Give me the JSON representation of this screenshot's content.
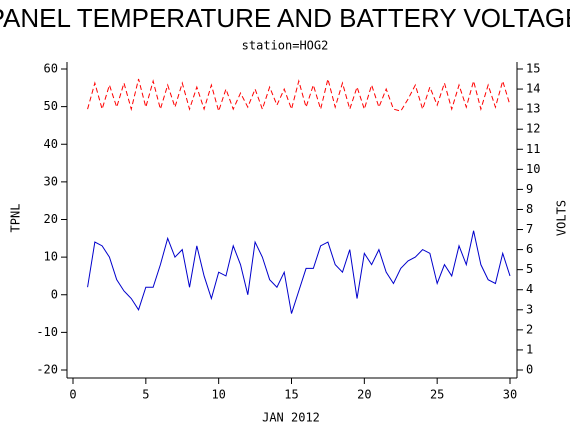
{
  "chart_data": {
    "type": "line",
    "title": "PANEL TEMPERATURE AND BATTERY VOLTAGE",
    "subtitle": "station=HOG2",
    "xlabel": "JAN 2012",
    "ylabel": "TPNL",
    "y2label": "VOLTS",
    "x": [
      1,
      1.5,
      2,
      2.5,
      3,
      3.5,
      4,
      4.5,
      5,
      5.5,
      6,
      6.5,
      7,
      7.5,
      8,
      8.5,
      9,
      9.5,
      10,
      10.5,
      11,
      11.5,
      12,
      12.5,
      13,
      13.5,
      14,
      14.5,
      15,
      15.5,
      16,
      16.5,
      17,
      17.5,
      18,
      18.5,
      19,
      19.5,
      20,
      20.5,
      21,
      21.5,
      22,
      22.5,
      23,
      23.5,
      24,
      24.5,
      25,
      25.5,
      26,
      26.5,
      27,
      27.5,
      28,
      28.5,
      29,
      29.5,
      30
    ],
    "series": [
      {
        "name": "TPNL",
        "color": "#0000cc",
        "axis": "y",
        "dashed": false,
        "values": [
          2,
          14,
          13,
          10,
          4,
          1,
          -1,
          -4,
          2,
          2,
          8,
          15,
          10,
          12,
          2,
          13,
          5,
          -1,
          6,
          5,
          13,
          8,
          0,
          14,
          10,
          4,
          2,
          6,
          -5,
          1,
          7,
          7,
          13,
          14,
          8,
          6,
          12,
          -1,
          11,
          8,
          12,
          6,
          3,
          7,
          9,
          10,
          12,
          11,
          3,
          8,
          5,
          13,
          8,
          17,
          8,
          4,
          3,
          11,
          5
        ]
      },
      {
        "name": "VOLTS",
        "color": "#ff0000",
        "axis": "y2",
        "dashed": true,
        "values": [
          13.0,
          14.3,
          13.0,
          14.2,
          13.1,
          14.3,
          13.0,
          14.5,
          13.1,
          14.4,
          13.0,
          14.2,
          13.1,
          14.3,
          13.0,
          14.1,
          13.0,
          14.2,
          12.9,
          14.0,
          13.0,
          13.8,
          13.1,
          14.0,
          13.0,
          14.1,
          13.2,
          14.0,
          13.0,
          14.4,
          13.1,
          14.2,
          13.0,
          14.5,
          13.1,
          14.3,
          13.0,
          14.1,
          13.0,
          14.2,
          13.1,
          14.0,
          13.0,
          12.9,
          13.5,
          14.2,
          13.0,
          14.1,
          13.2,
          14.3,
          13.0,
          14.2,
          13.1,
          14.4,
          13.0,
          14.2,
          13.1,
          14.4,
          13.2
        ]
      }
    ],
    "xlim": [
      0,
      30
    ],
    "xticks": [
      0,
      5,
      10,
      15,
      20,
      25,
      30
    ],
    "ylim": [
      -20,
      60
    ],
    "yticks": [
      -20,
      -10,
      0,
      10,
      20,
      30,
      40,
      50,
      60
    ],
    "y2lim": [
      0,
      15
    ],
    "y2ticks": [
      0,
      1,
      2,
      3,
      4,
      5,
      6,
      7,
      8,
      9,
      10,
      11,
      12,
      13,
      14,
      15
    ],
    "grid": false
  }
}
